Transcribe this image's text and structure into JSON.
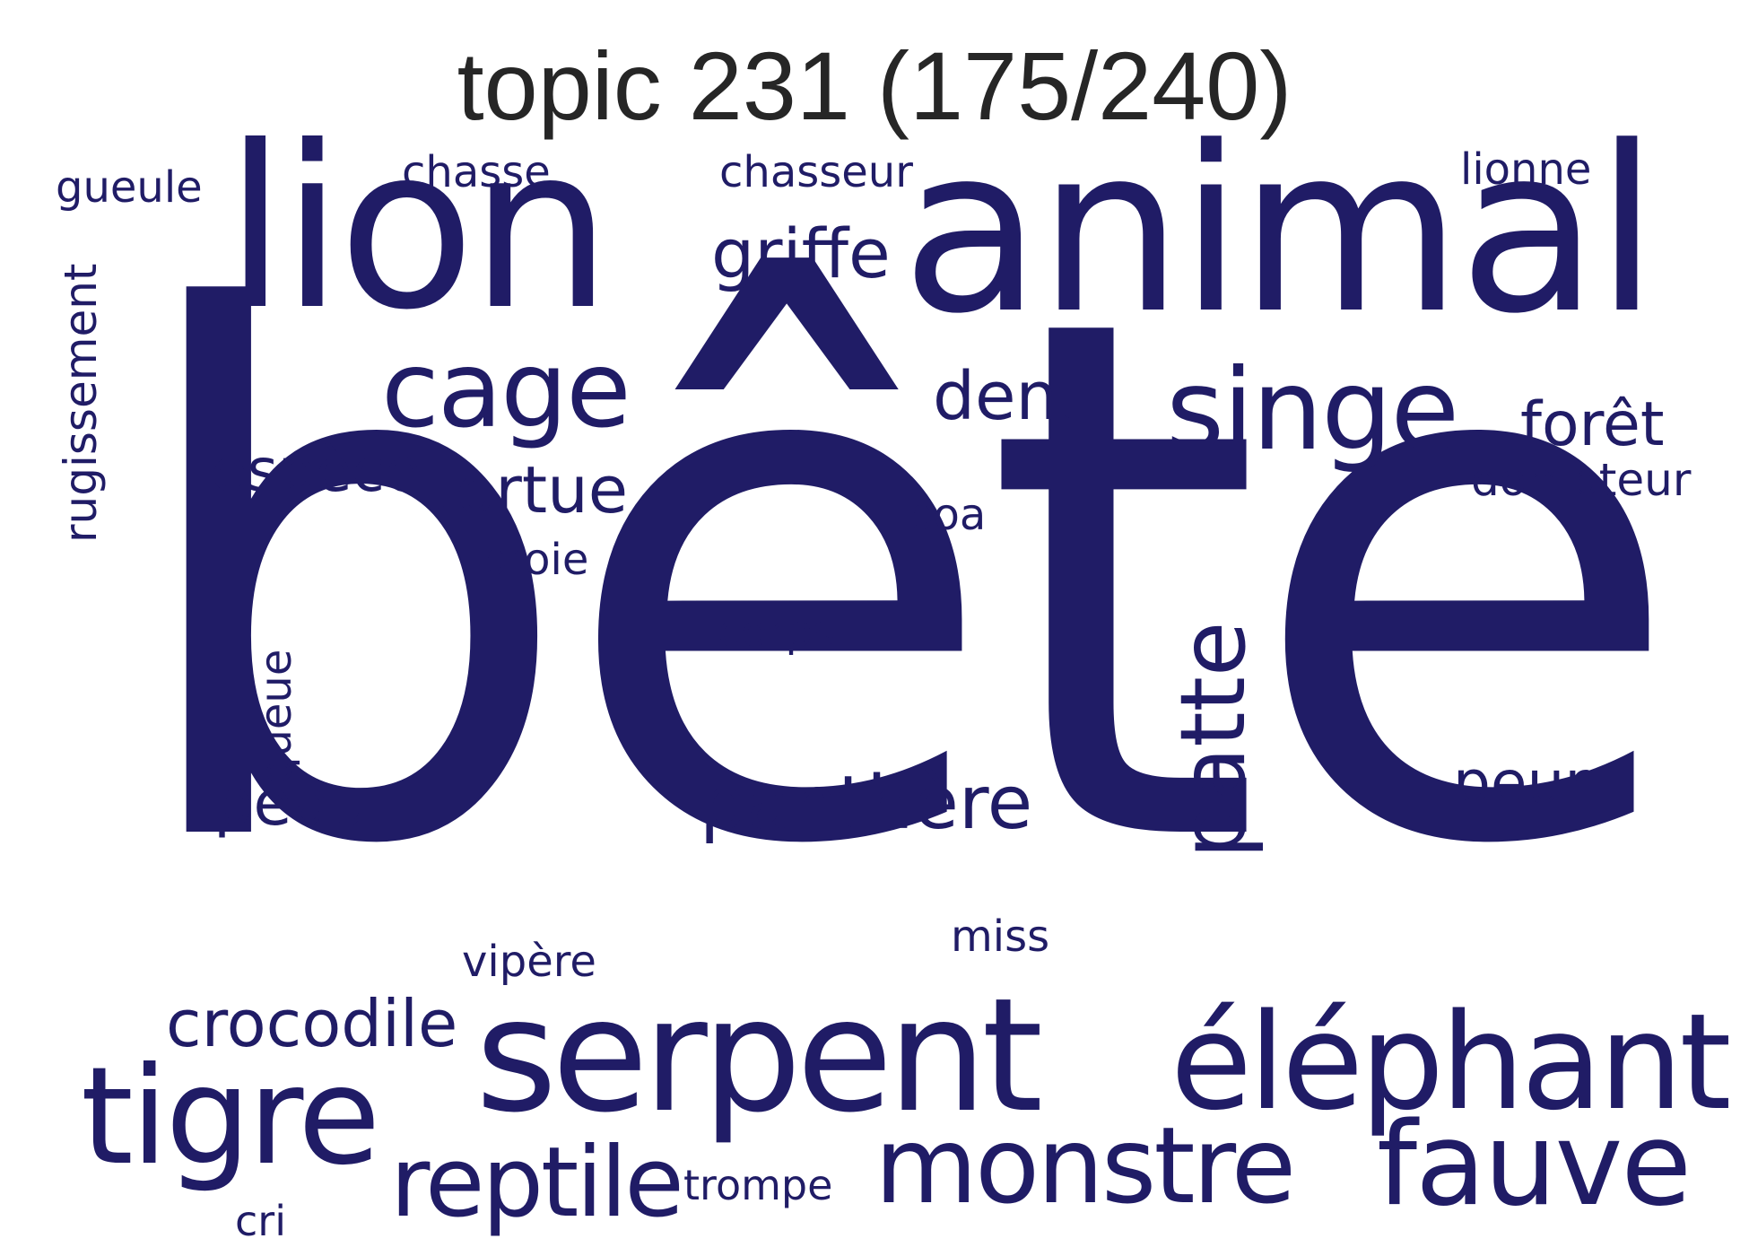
{
  "title": "topic 231 (175/240)",
  "word_color": "#201c66",
  "words": {
    "bete": "bête",
    "lion": "lion",
    "animal": "animal",
    "serpent": "serpent",
    "elephant": "éléphant",
    "tigre": "tigre",
    "monstre": "monstre",
    "fauve": "fauve",
    "reptile": "reptile",
    "singe": "singe",
    "cage": "cage",
    "patte": "patte",
    "panthere": "panthère",
    "crocodile": "crocodile",
    "tortue": "tortue",
    "espece": "espèce",
    "dent": "dent",
    "griffe": "griffe",
    "foret": "forêt",
    "peau": "peau",
    "peur": "peur",
    "dompteur": "dompteur",
    "rugissement": "rugissement",
    "queue": "queue",
    "gueule": "gueule",
    "chasse": "chasse",
    "chasseur": "chasseur",
    "lionne": "lionne",
    "boa": "boa",
    "proie": "proie",
    "corps": "corps",
    "miss": "miss",
    "vipere": "vipère",
    "trompe": "trompe",
    "cri": "cri"
  }
}
